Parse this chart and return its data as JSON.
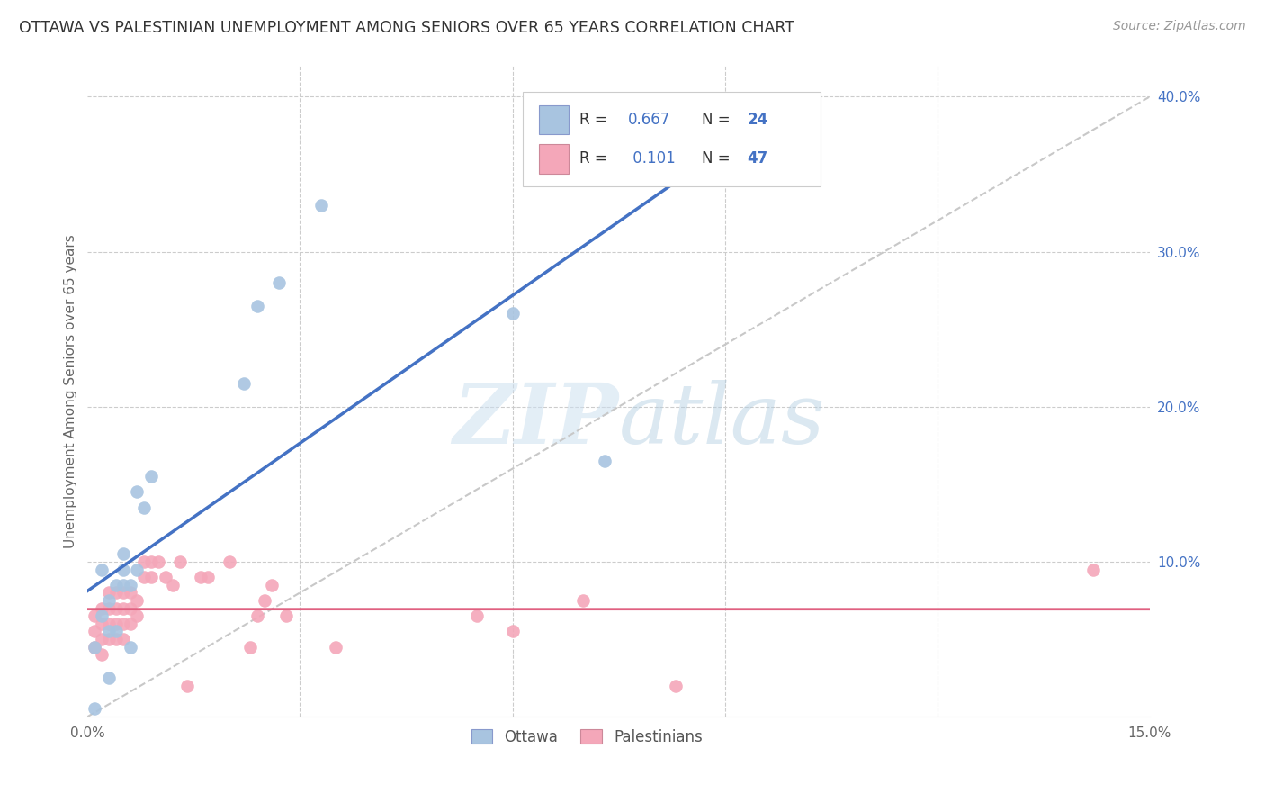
{
  "title": "OTTAWA VS PALESTINIAN UNEMPLOYMENT AMONG SENIORS OVER 65 YEARS CORRELATION CHART",
  "source": "Source: ZipAtlas.com",
  "ylabel": "Unemployment Among Seniors over 65 years",
  "xlim": [
    0.0,
    0.15
  ],
  "ylim": [
    0.0,
    0.42
  ],
  "grid_color": "#cccccc",
  "background_color": "#ffffff",
  "ottawa_color": "#a8c4e0",
  "palestinian_color": "#f4a7b9",
  "ottawa_line_color": "#4472c4",
  "palestinian_line_color": "#e06080",
  "diagonal_color": "#c8c8c8",
  "R_ottawa": 0.667,
  "N_ottawa": 24,
  "R_palestinian": 0.101,
  "N_palestinian": 47,
  "ottawa_x": [
    0.001,
    0.001,
    0.002,
    0.002,
    0.003,
    0.003,
    0.003,
    0.004,
    0.004,
    0.005,
    0.005,
    0.005,
    0.006,
    0.006,
    0.007,
    0.007,
    0.008,
    0.009,
    0.022,
    0.024,
    0.027,
    0.033,
    0.06,
    0.073
  ],
  "ottawa_y": [
    0.005,
    0.045,
    0.065,
    0.095,
    0.025,
    0.055,
    0.075,
    0.055,
    0.085,
    0.085,
    0.095,
    0.105,
    0.045,
    0.085,
    0.095,
    0.145,
    0.135,
    0.155,
    0.215,
    0.265,
    0.28,
    0.33,
    0.26,
    0.165
  ],
  "palestinian_x": [
    0.001,
    0.001,
    0.001,
    0.002,
    0.002,
    0.002,
    0.002,
    0.003,
    0.003,
    0.003,
    0.003,
    0.004,
    0.004,
    0.004,
    0.004,
    0.005,
    0.005,
    0.005,
    0.005,
    0.006,
    0.006,
    0.006,
    0.007,
    0.007,
    0.008,
    0.008,
    0.009,
    0.009,
    0.01,
    0.011,
    0.012,
    0.013,
    0.014,
    0.016,
    0.017,
    0.02,
    0.023,
    0.024,
    0.025,
    0.026,
    0.028,
    0.035,
    0.055,
    0.06,
    0.07,
    0.083,
    0.142
  ],
  "palestinian_y": [
    0.045,
    0.055,
    0.065,
    0.04,
    0.05,
    0.06,
    0.07,
    0.05,
    0.06,
    0.07,
    0.08,
    0.05,
    0.06,
    0.07,
    0.08,
    0.05,
    0.06,
    0.07,
    0.08,
    0.06,
    0.07,
    0.08,
    0.065,
    0.075,
    0.09,
    0.1,
    0.09,
    0.1,
    0.1,
    0.09,
    0.085,
    0.1,
    0.02,
    0.09,
    0.09,
    0.1,
    0.045,
    0.065,
    0.075,
    0.085,
    0.065,
    0.045,
    0.065,
    0.055,
    0.075,
    0.02,
    0.095
  ],
  "watermark_zip": "ZIP",
  "watermark_atlas": "atlas",
  "legend_label_color": "#333333",
  "legend_value_color": "#4472c4"
}
